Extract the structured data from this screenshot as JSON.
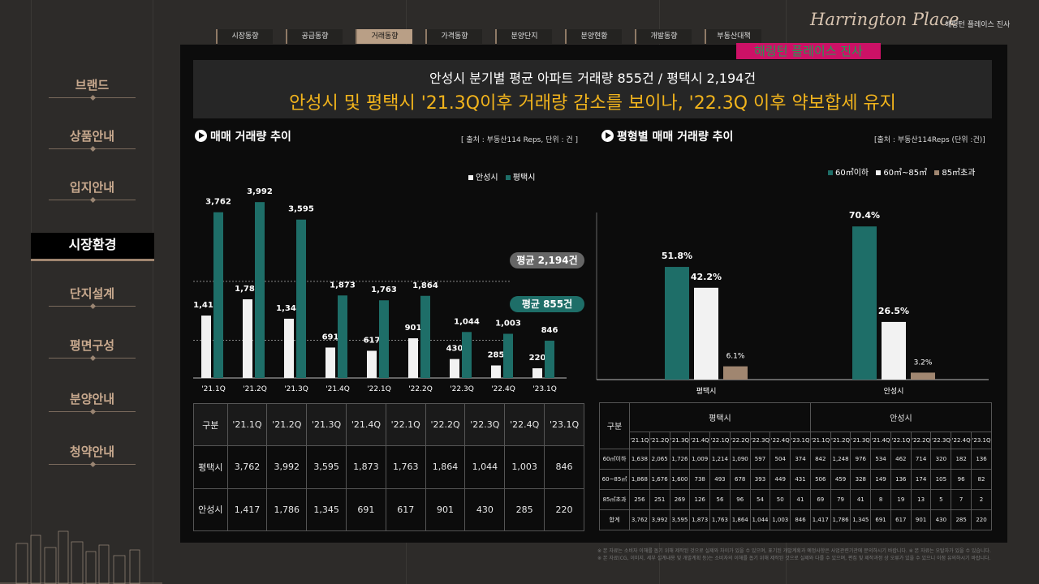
{
  "colors": {
    "teal": "#1e6e68",
    "white": "#f2f2f2",
    "tan": "#a08670",
    "accent": "#f2b41c"
  },
  "brand": {
    "logo_script": "Harrington Place",
    "logo_kr": "해링턴 플레이스 진사",
    "stamp": "해링턴 플레이스 진사"
  },
  "tabs": [
    "시장동향",
    "공급동향",
    "거래동향",
    "가격동향",
    "분양단지",
    "분양현황",
    "개발동향",
    "부동산대책"
  ],
  "active_tab_index": 2,
  "sidebar": [
    "브랜드",
    "상품안내",
    "입지안내",
    "시장환경",
    "단지설계",
    "평면구성",
    "분양안내",
    "청약안내"
  ],
  "sidebar_active_index": 3,
  "header": {
    "line1": "안성시 분기별 평균 아파트 거래량 855건 / 평택시 2,194건",
    "line2": "안성시 및 평택시 '21.3Q이후 거래량 감소를 보이나, '22.3Q 이후 약보합세 유지"
  },
  "left": {
    "title": "매매 거래량 추이",
    "source": "[ 출처 : 부동산114 Reps, 단위 : 건 ]",
    "avg_pyeongtaek": "평균 2,194건",
    "avg_anseong": "평균 855건"
  },
  "right": {
    "title": "평형별 매매 거래량 추이",
    "source": "[출처 : 부동산114Reps (단위 :건)]"
  },
  "chart_data": [
    {
      "type": "bar",
      "categories": [
        "'21.1Q",
        "'21.2Q",
        "'21.3Q",
        "'21.4Q",
        "'22.1Q",
        "'22.2Q",
        "'22.3Q",
        "'22.4Q",
        "'23.1Q"
      ],
      "series": [
        {
          "name": "안성시",
          "values": [
            1417,
            1786,
            1345,
            691,
            617,
            901,
            430,
            285,
            220
          ]
        },
        {
          "name": "평택시",
          "values": [
            3762,
            3992,
            3595,
            1873,
            1763,
            1864,
            1044,
            1003,
            846
          ]
        }
      ],
      "value_labels": {
        "안성시": [
          "1,417",
          "1,786",
          "1,345",
          "691",
          "617",
          "901",
          "430",
          "285",
          "220"
        ],
        "평택시": [
          "3,762",
          "3,992",
          "3,595",
          "1,873",
          "1,763",
          "1,864",
          "1,044",
          "1,003",
          "846"
        ]
      },
      "ylim": [
        0,
        4400
      ],
      "reference_lines": [
        2194,
        855
      ],
      "legend": "top-right"
    },
    {
      "type": "bar",
      "categories": [
        "평택시",
        "안성시"
      ],
      "series": [
        {
          "name": "60㎡이하",
          "values": [
            51.8,
            70.4
          ],
          "labels": [
            "51.8%",
            "70.4%"
          ]
        },
        {
          "name": "60㎡~85㎡",
          "values": [
            42.2,
            26.5
          ],
          "labels": [
            "42.2%",
            "26.5%"
          ]
        },
        {
          "name": "85㎡초과",
          "values": [
            6.1,
            3.2
          ],
          "labels": [
            "6.1%",
            "3.2%"
          ]
        }
      ],
      "ylim": [
        0,
        85
      ],
      "legend": "top-right"
    }
  ],
  "table1": {
    "corner": "구분",
    "headers": [
      "'21.1Q",
      "'21.2Q",
      "'21.3Q",
      "'21.4Q",
      "'22.1Q",
      "'22.2Q",
      "'22.3Q",
      "'22.4Q",
      "'23.1Q"
    ],
    "rows": [
      {
        "label": "평택시",
        "values": [
          "3,762",
          "3,992",
          "3,595",
          "1,873",
          "1,763",
          "1,864",
          "1,044",
          "1,003",
          "846"
        ]
      },
      {
        "label": "안성시",
        "values": [
          "1,417",
          "1,786",
          "1,345",
          "691",
          "617",
          "901",
          "430",
          "285",
          "220"
        ]
      }
    ]
  },
  "table2": {
    "corner": "구분",
    "groups": [
      "평택시",
      "안성시"
    ],
    "headers": [
      "'21.1Q",
      "'21.2Q",
      "'21.3Q",
      "'21.4Q",
      "'22.1Q",
      "'22.2Q",
      "'22.3Q",
      "'22.4Q",
      "'23.1Q"
    ],
    "rows": [
      {
        "label": "60㎡이하",
        "values": [
          "1,638",
          "2,065",
          "1,726",
          "1,009",
          "1,214",
          "1,090",
          "597",
          "504",
          "374",
          "842",
          "1,248",
          "976",
          "534",
          "462",
          "714",
          "320",
          "182",
          "136"
        ]
      },
      {
        "label": "60~85㎡",
        "values": [
          "1,868",
          "1,676",
          "1,600",
          "738",
          "493",
          "678",
          "393",
          "449",
          "431",
          "506",
          "459",
          "328",
          "149",
          "136",
          "174",
          "105",
          "96",
          "82"
        ]
      },
      {
        "label": "85㎡초과",
        "values": [
          "256",
          "251",
          "269",
          "126",
          "56",
          "96",
          "54",
          "50",
          "41",
          "69",
          "79",
          "41",
          "8",
          "19",
          "13",
          "5",
          "7",
          "2"
        ]
      },
      {
        "label": "합계",
        "values": [
          "3,762",
          "3,992",
          "3,595",
          "1,873",
          "1,763",
          "1,864",
          "1,044",
          "1,003",
          "846",
          "1,417",
          "1,786",
          "1,345",
          "691",
          "617",
          "901",
          "430",
          "285",
          "220"
        ]
      }
    ]
  },
  "footnotes": [
    "※ 본 자료는 소비자 이해를 돕기 위해 제작된 것으로 실제와 차이가 있을 수 있으며, 표기된 개발계획과 예정사항은 사업관련기관에 문의하시기 바랍니다.   ※ 본 자료는 오탈자가 있을 수 있습니다.",
    "※ 본 자료(CG, 이미지, 세부 설계내용 및 개발계획 등)는 소비자의 이해를 돕기 위해 제작된 것으로 실제와 다를 수 있으며, 편집 및 제작과정 상 오류가 있을 수 있으니 이점 유의하시기 바랍니다."
  ]
}
